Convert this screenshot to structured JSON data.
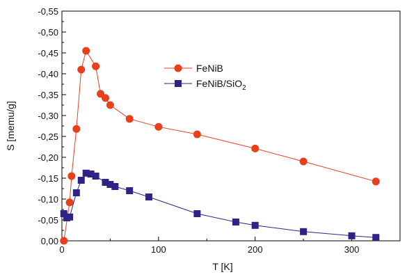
{
  "chart_data": {
    "type": "line",
    "title": "",
    "xlabel": "T [K]",
    "ylabel": "S [memu/g]",
    "xlim": [
      0,
      350
    ],
    "ylim": [
      0,
      -0.55
    ],
    "xticks": [
      0,
      100,
      200,
      300
    ],
    "xtick_labels": [
      "0",
      "100",
      "200",
      "300"
    ],
    "yticks": [
      0,
      -0.05,
      -0.1,
      -0.15,
      -0.2,
      -0.25,
      -0.3,
      -0.35,
      -0.4,
      -0.45,
      -0.5,
      -0.55
    ],
    "ytick_labels": [
      "0,00",
      "-0,05",
      "-0,10",
      "-0,15",
      "-0,20",
      "-0,25",
      "-0,30",
      "-0,35",
      "-0,40",
      "-0,45",
      "-0,50",
      "-0,55"
    ],
    "grid": false,
    "legend_position": "upper-middle",
    "series": [
      {
        "name": "FeNiB",
        "name_base": "FeNiB",
        "name_sub": "",
        "color": "#e8401c",
        "marker": "circle",
        "x": [
          2,
          8,
          10,
          15,
          20,
          25,
          35,
          40,
          45,
          50,
          70,
          100,
          140,
          200,
          250,
          325
        ],
        "y": [
          0.0,
          -0.092,
          -0.155,
          -0.268,
          -0.41,
          -0.455,
          -0.418,
          -0.352,
          -0.342,
          -0.325,
          -0.292,
          -0.273,
          -0.255,
          -0.221,
          -0.19,
          -0.142
        ]
      },
      {
        "name": "FeNiB/SiO2",
        "name_base": "FeNiB/SiO",
        "name_sub": "2",
        "color": "#2e2488",
        "marker": "square",
        "x": [
          2,
          5,
          8,
          15,
          20,
          25,
          30,
          35,
          45,
          50,
          55,
          70,
          90,
          140,
          180,
          200,
          250,
          300,
          325
        ],
        "y": [
          -0.065,
          -0.055,
          -0.057,
          -0.115,
          -0.145,
          -0.162,
          -0.16,
          -0.155,
          -0.14,
          -0.135,
          -0.13,
          -0.12,
          -0.105,
          -0.065,
          -0.045,
          -0.037,
          -0.022,
          -0.012,
          -0.008
        ]
      }
    ]
  }
}
